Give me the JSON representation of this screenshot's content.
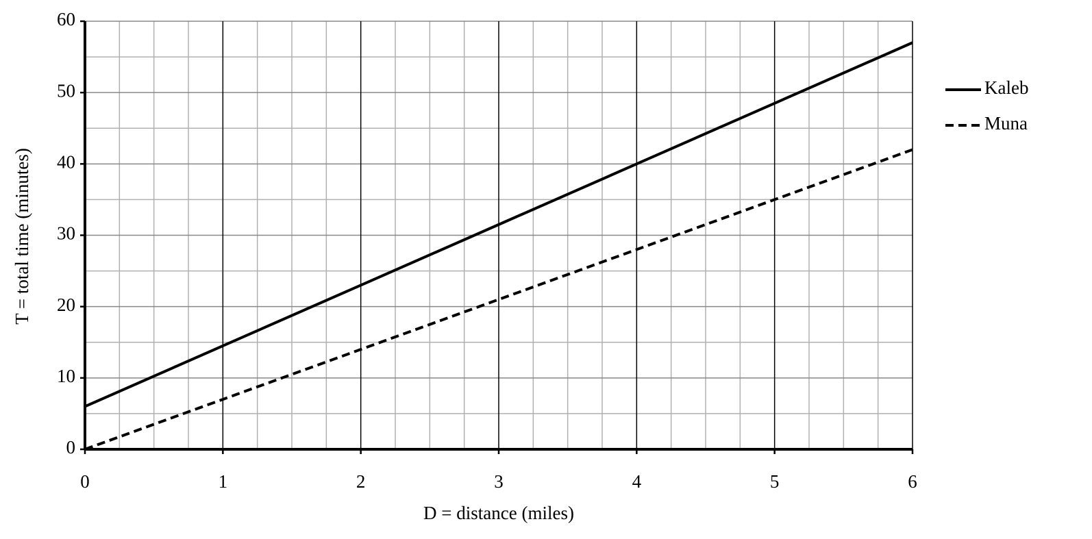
{
  "chart_data": {
    "type": "line",
    "xlabel": "D = distance (miles)",
    "ylabel": "T = total time (minutes)",
    "x": [
      0,
      1,
      2,
      3,
      4,
      5,
      6
    ],
    "series": [
      {
        "name": "Kaleb",
        "color": "#000000",
        "line_style": "solid",
        "values": [
          6,
          14.5,
          23,
          31.5,
          40,
          48.5,
          57
        ]
      },
      {
        "name": "Muna",
        "color": "#000000",
        "line_style": "dashed",
        "values": [
          0,
          7,
          14,
          21,
          28,
          35,
          42
        ]
      }
    ],
    "xlim": [
      0,
      6
    ],
    "xticks": [
      0,
      1,
      2,
      3,
      4,
      5,
      6
    ],
    "ylim": [
      0,
      60
    ],
    "yticks": [
      0,
      10,
      20,
      30,
      40,
      50,
      60
    ],
    "grid": true,
    "minor_grid": true,
    "legend": "right"
  }
}
